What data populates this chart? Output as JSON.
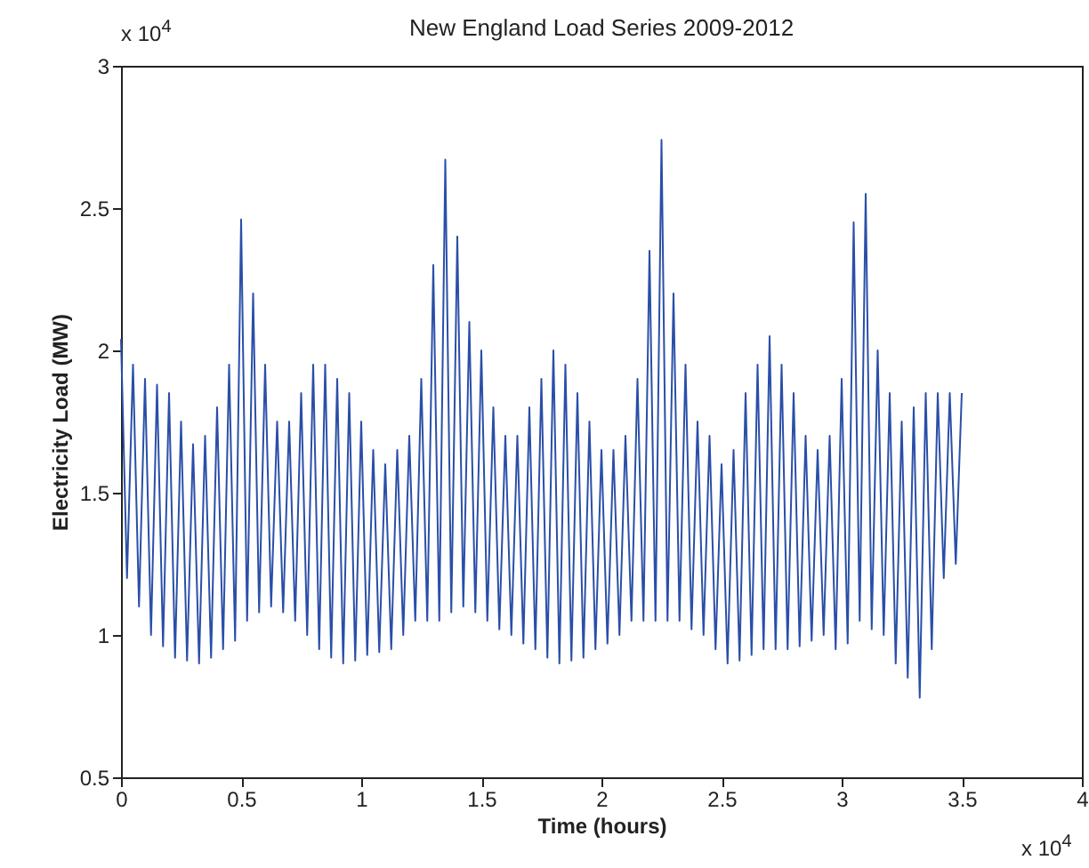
{
  "chart_data": {
    "type": "line",
    "title": "New England Load Series 2009-2012",
    "xlabel": "Time (hours)",
    "ylabel": "Electricity Load (MW)",
    "annotations": [
      "x 10$^{4}$",
      "x 10$^{4}$"
    ],
    "xlim": [
      0,
      4
    ],
    "ylim": [
      0.5,
      3
    ],
    "xticks": [
      0,
      0.5,
      1,
      1.5,
      2,
      2.5,
      3,
      3.5,
      4
    ],
    "yticks": [
      0.5,
      1,
      1.5,
      2,
      2.5,
      3
    ],
    "grid": false,
    "marker": "none",
    "line_style": "solid",
    "series": [
      {
        "color": "#2a4fa8",
        "x": [
          0,
          0.025,
          0.05,
          0.075,
          0.1,
          0.125,
          0.15,
          0.175,
          0.2,
          0.225,
          0.25,
          0.275,
          0.3,
          0.325,
          0.35,
          0.375,
          0.4,
          0.425,
          0.45,
          0.475,
          0.5,
          0.525,
          0.55,
          0.575,
          0.6,
          0.625,
          0.65,
          0.675,
          0.7,
          0.725,
          0.75,
          0.775,
          0.8,
          0.825,
          0.85,
          0.875,
          0.9,
          0.925,
          0.95,
          0.975,
          1,
          1.025,
          1.05,
          1.075,
          1.1,
          1.125,
          1.15,
          1.175,
          1.2,
          1.225,
          1.25,
          1.275,
          1.3,
          1.325,
          1.35,
          1.375,
          1.4,
          1.425,
          1.45,
          1.475,
          1.5,
          1.525,
          1.55,
          1.575,
          1.6,
          1.625,
          1.65,
          1.675,
          1.7,
          1.725,
          1.75,
          1.775,
          1.8,
          1.825,
          1.85,
          1.875,
          1.9,
          1.925,
          1.95,
          1.975,
          2,
          2.025,
          2.05,
          2.075,
          2.1,
          2.125,
          2.15,
          2.175,
          2.2,
          2.225,
          2.25,
          2.275,
          2.3,
          2.325,
          2.35,
          2.375,
          2.4,
          2.425,
          2.45,
          2.475,
          2.5,
          2.525,
          2.55,
          2.575,
          2.6,
          2.625,
          2.65,
          2.675,
          2.7,
          2.725,
          2.75,
          2.775,
          2.8,
          2.825,
          2.85,
          2.875,
          2.9,
          2.925,
          2.95,
          2.975,
          3,
          3.025,
          3.05,
          3.075,
          3.1,
          3.125,
          3.15,
          3.175,
          3.2,
          3.225,
          3.25,
          3.275,
          3.3,
          3.325,
          3.35,
          3.375,
          3.4,
          3.425,
          3.45,
          3.475,
          3.5
        ],
        "values": [
          2.04,
          1.2,
          1.95,
          1.1,
          1.9,
          1.0,
          1.88,
          0.96,
          1.85,
          0.92,
          1.75,
          0.91,
          1.67,
          0.9,
          1.7,
          0.92,
          1.8,
          0.95,
          1.95,
          0.98,
          2.46,
          1.05,
          2.2,
          1.08,
          1.95,
          1.1,
          1.75,
          1.08,
          1.75,
          1.05,
          1.85,
          1.0,
          1.95,
          0.95,
          1.95,
          0.92,
          1.9,
          0.9,
          1.85,
          0.91,
          1.75,
          0.93,
          1.65,
          0.94,
          1.6,
          0.95,
          1.65,
          1.0,
          1.7,
          1.05,
          1.9,
          1.05,
          2.3,
          1.05,
          2.67,
          1.08,
          2.4,
          1.1,
          2.1,
          1.08,
          2.0,
          1.05,
          1.8,
          1.02,
          1.7,
          1.0,
          1.7,
          0.97,
          1.8,
          0.95,
          1.9,
          0.92,
          2.0,
          0.9,
          1.95,
          0.91,
          1.85,
          0.92,
          1.75,
          0.95,
          1.65,
          0.97,
          1.65,
          1.0,
          1.7,
          1.05,
          1.9,
          1.05,
          2.35,
          1.05,
          2.74,
          1.05,
          2.2,
          1.05,
          1.95,
          1.02,
          1.75,
          1.0,
          1.7,
          0.95,
          1.6,
          0.9,
          1.65,
          0.91,
          1.85,
          0.93,
          1.95,
          0.95,
          2.05,
          0.95,
          1.95,
          0.95,
          1.85,
          0.96,
          1.7,
          0.98,
          1.65,
          1.0,
          1.7,
          0.95,
          1.9,
          0.97,
          2.45,
          1.05,
          2.55,
          1.02,
          2.0,
          1.0,
          1.85,
          0.9,
          1.75,
          0.85,
          1.8,
          0.78,
          1.85,
          0.95,
          1.85,
          1.2,
          1.85,
          1.25,
          1.85
        ]
      }
    ]
  }
}
